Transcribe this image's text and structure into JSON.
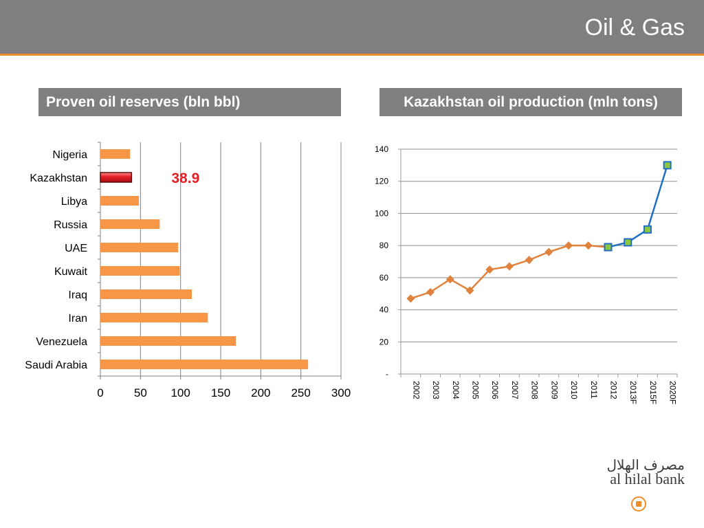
{
  "slide": {
    "title": "Oil & Gas",
    "brand_arabic": "مصرف الهلال",
    "brand_english": "al hilal bank",
    "accent_color": "#f28c28",
    "header_color": "#7f7f7f"
  },
  "left_panel": {
    "title": "Proven oil reserves (bln bbl)"
  },
  "right_panel": {
    "title": "Kazakhstan oil production (mln tons)"
  },
  "chart_data": [
    {
      "type": "bar",
      "orientation": "horizontal",
      "categories": [
        "Nigeria",
        "Kazakhstan",
        "Libya",
        "Russia",
        "UAE",
        "Kuwait",
        "Iraq",
        "Iran",
        "Venezuela",
        "Saudi Arabia"
      ],
      "values": [
        37,
        38.9,
        48,
        74,
        97,
        99,
        114,
        134,
        169,
        259
      ],
      "highlight": {
        "category": "Kazakhstan",
        "color": "#e31e24",
        "label": "38.9"
      },
      "bar_color": "#f79646",
      "xlim": [
        0,
        300
      ],
      "xticks": [
        "0",
        "50",
        "100",
        "150",
        "200",
        "250",
        "300"
      ],
      "grid": "vertical"
    },
    {
      "type": "line",
      "x": [
        "2002",
        "2003",
        "2004",
        "2005",
        "2006",
        "2007",
        "2008",
        "2009",
        "2010",
        "2011",
        "2012",
        "2013F",
        "2015F",
        "2020F"
      ],
      "series": [
        {
          "values": [
            47,
            51,
            59,
            52,
            65,
            67,
            71,
            76,
            80,
            80,
            79,
            null,
            null,
            null
          ],
          "color": "#e0823d",
          "marker": "diamond"
        },
        {
          "values": [
            null,
            null,
            null,
            null,
            null,
            null,
            null,
            null,
            null,
            null,
            79,
            82,
            90,
            130
          ],
          "color": "#1f6fc5",
          "marker": "square",
          "marker_fill": "#8dc63f"
        }
      ],
      "ylim": [
        0,
        140
      ],
      "yticks": [
        "-",
        "20",
        "40",
        "60",
        "80",
        "100",
        "120",
        "140"
      ],
      "grid": "horizontal"
    }
  ]
}
